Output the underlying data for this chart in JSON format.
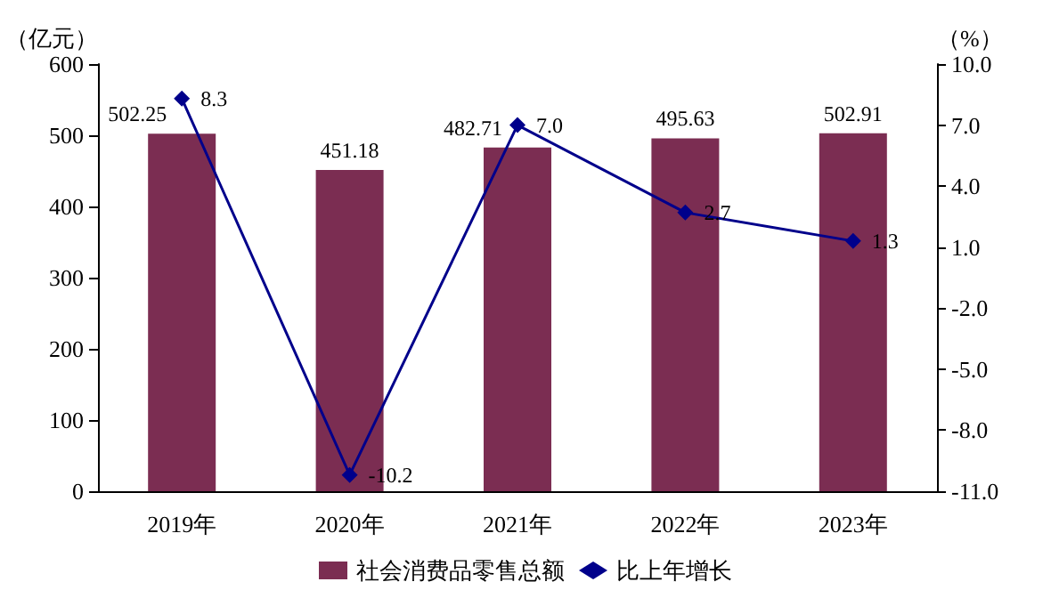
{
  "chart_data": {
    "type": "bar",
    "categories": [
      "2019年",
      "2020年",
      "2021年",
      "2022年",
      "2023年"
    ],
    "ylabel": "（亿元）",
    "y2label": "（%）",
    "ylim": [
      0,
      600
    ],
    "yticks": [
      0,
      100,
      200,
      300,
      400,
      500,
      600
    ],
    "y2lim": [
      -11,
      10
    ],
    "y2ticks": [
      {
        "value": 10,
        "label": "10.0"
      },
      {
        "value": 7,
        "label": "7.0"
      },
      {
        "value": 4,
        "label": "4.0"
      },
      {
        "value": 1,
        "label": "1.0"
      },
      {
        "value": -2,
        "label": "-2.0"
      },
      {
        "value": -5,
        "label": "-5.0"
      },
      {
        "value": -8,
        "label": "-8.0"
      },
      {
        "value": -11,
        "label": "-11.0"
      }
    ],
    "legend": "bottom",
    "grid": false,
    "series": [
      {
        "name": "社会消费品零售总额",
        "type": "bar",
        "color": "#7b2d52",
        "values": [
          502.25,
          451.18,
          482.71,
          495.63,
          502.91
        ],
        "value_labels": [
          "502.25",
          "451.18",
          "482.71",
          "495.63",
          "502.91"
        ]
      },
      {
        "name": "比上年增长",
        "type": "line",
        "axis": "y2",
        "color": "#00008b",
        "marker": "diamond",
        "values": [
          8.3,
          -10.2,
          7.0,
          2.7,
          1.3
        ],
        "value_labels": [
          "8.3",
          "-10.2",
          "7.0",
          "2.7",
          "1.3"
        ]
      }
    ]
  }
}
